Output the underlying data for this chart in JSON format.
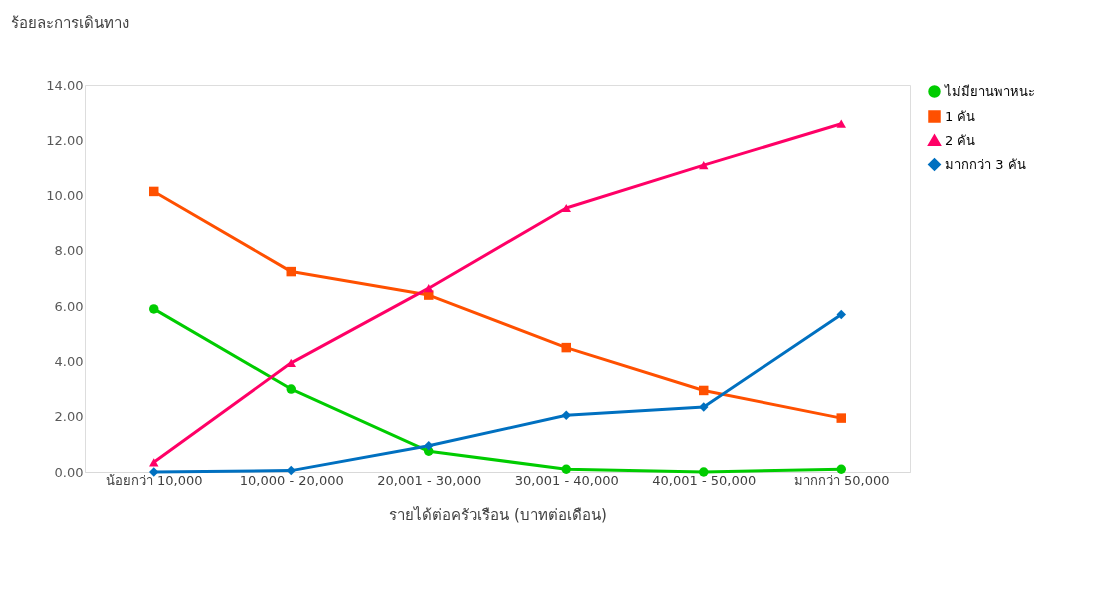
{
  "chart_data": {
    "type": "line",
    "ylabel": "ร้อยละการเดินทาง",
    "xlabel": "รายได้ต่อครัวเรือน (บาทต่อเดือน)",
    "categories": [
      "น้อยกว่า 10,000",
      "10,000 - 20,000",
      "20,001 - 30,000",
      "30,001 - 40,000",
      "40,001 - 50,000",
      "มากกว่า 50,000"
    ],
    "series": [
      {
        "name": "ไม่มียานพาหนะ",
        "color": "#00cc00",
        "marker": "circle",
        "values": [
          5.9,
          3.0,
          0.75,
          0.1,
          0.0,
          0.1
        ]
      },
      {
        "name": "1 คัน",
        "color": "#ff5000",
        "marker": "square",
        "values": [
          10.15,
          7.25,
          6.4,
          4.5,
          2.95,
          1.95
        ]
      },
      {
        "name": "2 คัน",
        "color": "#ff0066",
        "marker": "triangle",
        "values": [
          0.35,
          3.95,
          6.65,
          9.55,
          11.1,
          12.6
        ]
      },
      {
        "name": "มากกว่า 3 คัน",
        "color": "#0070c0",
        "marker": "diamond",
        "values": [
          0.0,
          0.05,
          0.95,
          2.05,
          2.35,
          5.7
        ]
      }
    ],
    "ylim": [
      0,
      14
    ],
    "yticks": [
      {
        "value": 0,
        "label": "0.00"
      },
      {
        "value": 2,
        "label": "2.00"
      },
      {
        "value": 4,
        "label": "4.00"
      },
      {
        "value": 6,
        "label": "6.00"
      },
      {
        "value": 8,
        "label": "8.00"
      },
      {
        "value": 10,
        "label": "10.00"
      },
      {
        "value": 12,
        "label": "12.00"
      },
      {
        "value": 14,
        "label": "14.00"
      }
    ],
    "grid": false,
    "legend": "right",
    "line_style": "solid"
  }
}
